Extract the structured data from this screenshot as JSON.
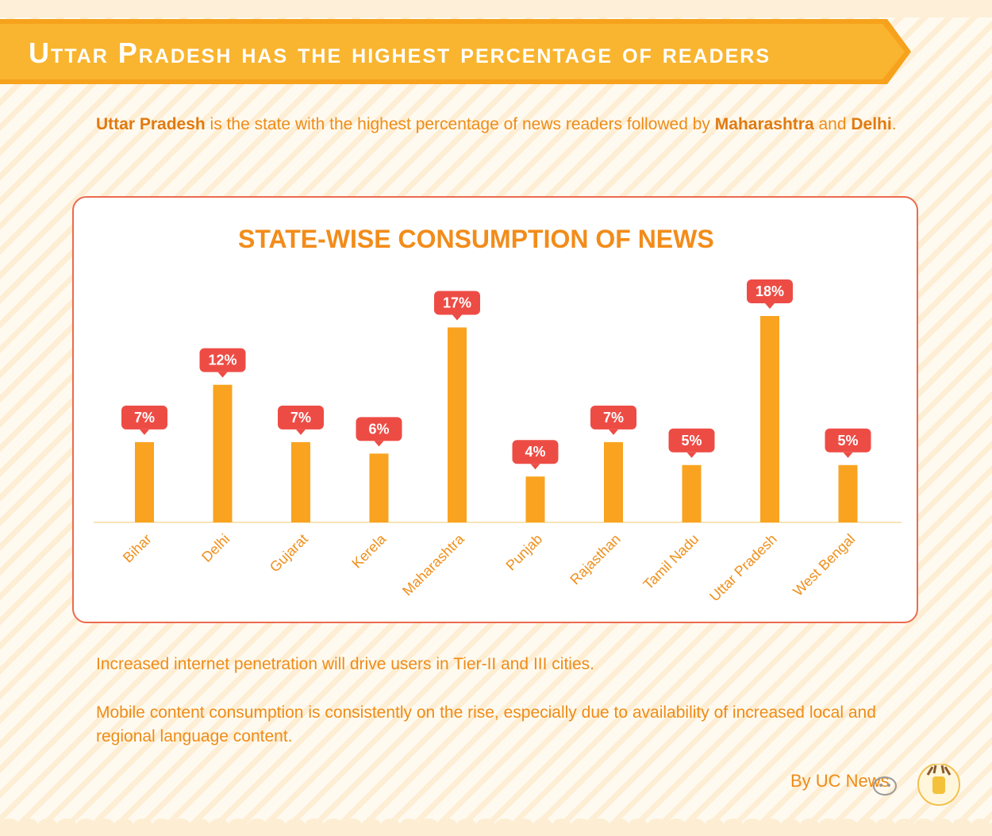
{
  "banner": {
    "title": "Uttar Pradesh has the highest percentage of readers"
  },
  "intro": {
    "highlight_1": "Uttar Pradesh",
    "text_1": " is the state with the highest percentage of news readers followed by ",
    "highlight_2": "Maharashtra",
    "text_2": " and ",
    "highlight_3": "Delhi",
    "text_3": "."
  },
  "chart_data": {
    "type": "bar",
    "title": "STATE-WISE CONSUMPTION OF NEWS",
    "categories": [
      "Bihar",
      "Delhi",
      "Gujarat",
      "Kerela",
      "Maharashtra",
      "Punjab",
      "Rajasthan",
      "Tamil Nadu",
      "Uttar Pradesh",
      "West Bengal"
    ],
    "values": [
      7,
      12,
      7,
      6,
      17,
      4,
      7,
      5,
      18,
      5
    ],
    "data_labels": [
      "7%",
      "12%",
      "7%",
      "6%",
      "17%",
      "4%",
      "7%",
      "5%",
      "18%",
      "5%"
    ],
    "unit": "%",
    "ylim": [
      0,
      18
    ],
    "xlabel": "",
    "ylabel": "",
    "grid": false,
    "colors": {
      "bar": "#f9a320",
      "label_bg": "#ed4c45",
      "label_text": "#ffffff",
      "axis": "#f7e4b8",
      "tick_text": "#ef8f1b"
    }
  },
  "notes": [
    "Increased internet penetration will drive users in Tier-II and III cities.",
    "Mobile content consumption is consistently on the rise, especially due to availability of increased local and regional language content."
  ],
  "credit": "By UC News",
  "colors": {
    "banner": "#f9b52f",
    "banner_shade": "#f6a21c",
    "accent": "#ee8c17",
    "panel_border": "#ec6a4e"
  }
}
